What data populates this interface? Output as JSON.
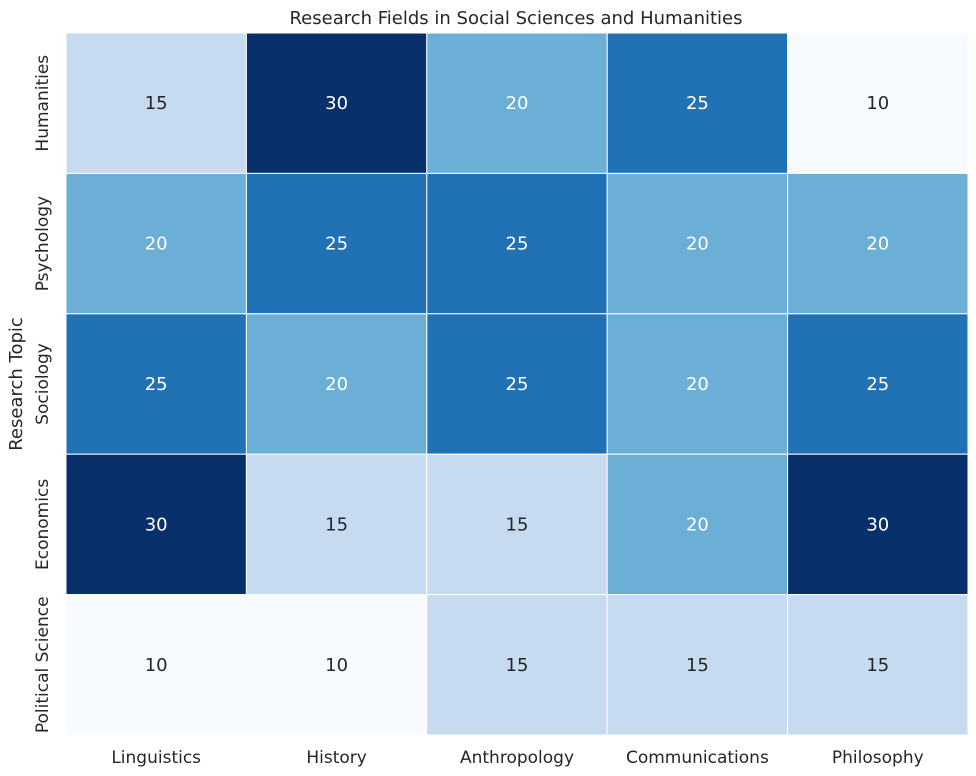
{
  "chart_data": {
    "type": "heatmap",
    "title": "Research Fields in Social Sciences and Humanities",
    "xlabel": "",
    "ylabel": "Research Topic",
    "x_categories": [
      "Linguistics",
      "History",
      "Anthropology",
      "Communications",
      "Philosophy"
    ],
    "y_categories": [
      "Humanities",
      "Psychology",
      "Sociology",
      "Economics",
      "Political Science"
    ],
    "values": [
      [
        15,
        30,
        20,
        25,
        10
      ],
      [
        20,
        25,
        25,
        20,
        20
      ],
      [
        25,
        20,
        25,
        20,
        25
      ],
      [
        30,
        15,
        15,
        20,
        30
      ],
      [
        10,
        10,
        15,
        15,
        15
      ]
    ],
    "colormap": "Blues",
    "vmin": 10,
    "vmax": 30,
    "annotated": true,
    "colorbar": false,
    "colors": {
      "10": "#f7fbff",
      "15": "#c6dbef",
      "20": "#6baed6",
      "25": "#2171b5",
      "30": "#08306b"
    },
    "cell_border_color": "#ffffff"
  }
}
